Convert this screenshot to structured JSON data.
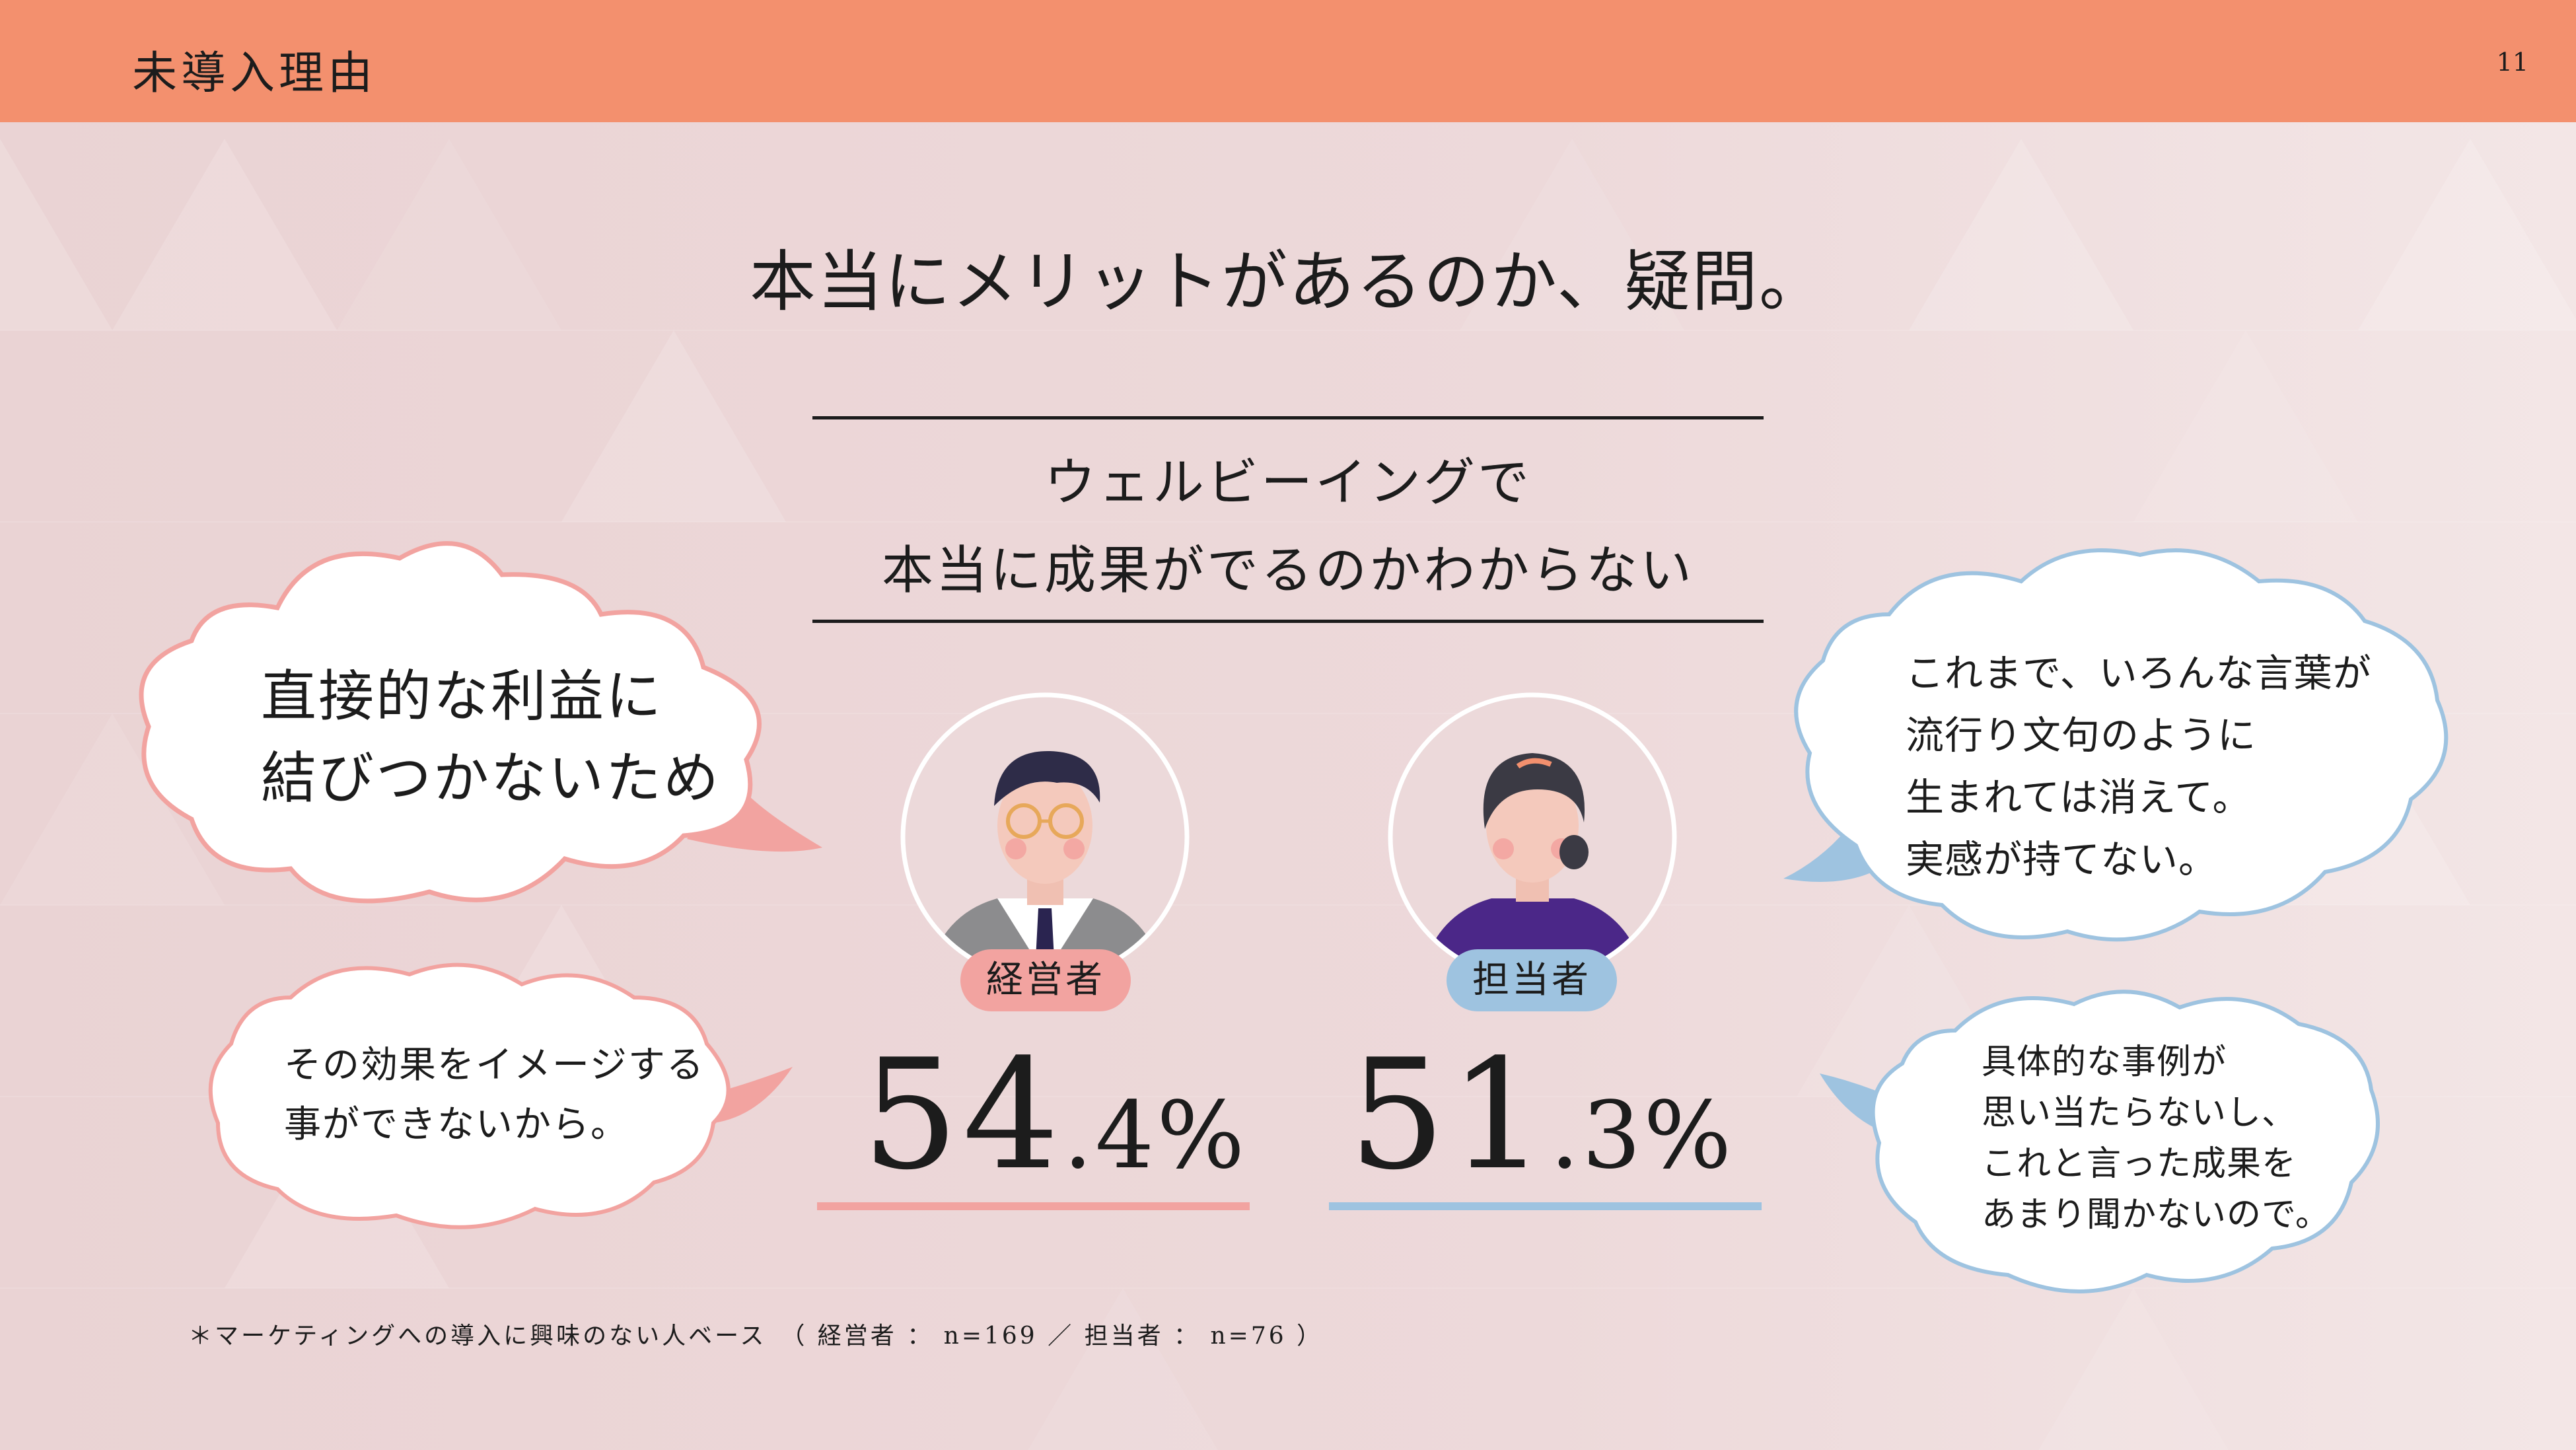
{
  "header": {
    "section_title": "未導入理由",
    "page_number": "11"
  },
  "headline": "本当にメリットがあるのか、疑問。",
  "subtitle": {
    "line1": "ウェルビーイングで",
    "line2": "本当に成果がでるのかわからない"
  },
  "bubbles": {
    "left_top": {
      "line1": "直接的な利益に",
      "line2": "結びつかないため"
    },
    "left_bottom": {
      "line1": "その効果をイメージする",
      "line2": "事ができないから。"
    },
    "right_top": {
      "line1": "これまで、いろんな言葉が",
      "line2": "流行り文句のように",
      "line3": "生まれては消えて。",
      "line4": "実感が持てない。"
    },
    "right_bottom": {
      "line1": "具体的な事例が",
      "line2": "思い当たらないし、",
      "line3": "これと言った成果を",
      "line4": "あまり聞かないので。"
    }
  },
  "respondents": [
    {
      "role": "経営者",
      "value_int": "54",
      "value_dec": ".4%",
      "value": 54.4
    },
    {
      "role": "担当者",
      "value_int": "51",
      "value_dec": ".3%",
      "value": 51.3
    }
  ],
  "footnote": "＊マーケティングへの導入に興味のない人ベース　（ 経営者 ： n=169 ／ 担当者 ： n=76 ）",
  "colors": {
    "header": "#f3906e",
    "executive": "#f2a3a0",
    "staff": "#9ec3e0",
    "background": "#ecd8d9"
  }
}
